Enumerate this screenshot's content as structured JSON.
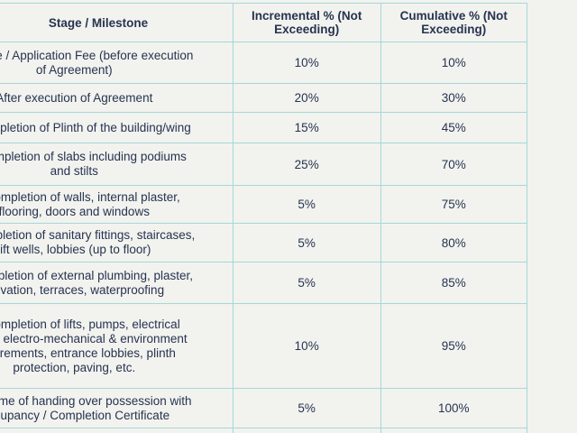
{
  "colors": {
    "background": "#f2f2ef",
    "gridline": "#a5d8d6",
    "text": "#26344f"
  },
  "table": {
    "headers": {
      "stage": "Stage / Milestone",
      "incremental": "Incremental % (Not Exceeding)",
      "cumulative": "Cumulative % (Not Exceeding)"
    },
    "rows": [
      {
        "stage": "Advance / Application Fee (before execution\nof Agreement)",
        "incremental": "10%",
        "cumulative": "10%"
      },
      {
        "stage": "After execution of Agreement",
        "incremental": "20%",
        "cumulative": "30%"
      },
      {
        "stage": "On completion of Plinth of the building/wing",
        "incremental": "15%",
        "cumulative": "45%"
      },
      {
        "stage": "On completion of slabs including podiums\nand stilts",
        "incremental": "25%",
        "cumulative": "70%"
      },
      {
        "stage": "On completion of walls, internal plaster,\nflooring, doors and windows",
        "incremental": "5%",
        "cumulative": "75%"
      },
      {
        "stage": "On completion of sanitary fittings, staircases,\nlift wells, lobbies (up to floor)",
        "incremental": "5%",
        "cumulative": "80%"
      },
      {
        "stage": "On completion of external plumbing, plaster,\nelevation, terraces, waterproofing",
        "incremental": "5%",
        "cumulative": "85%"
      },
      {
        "stage": "On completion of lifts, pumps, electrical\nfittings, electro-mechanical & environment\nrequirements, entrance lobbies, plinth\nprotection, paving, etc.",
        "incremental": "10%",
        "cumulative": "95%"
      },
      {
        "stage": "At the time of handing over possession with\nOccupancy / Completion Certificate",
        "incremental": "5%",
        "cumulative": "100%"
      }
    ]
  }
}
